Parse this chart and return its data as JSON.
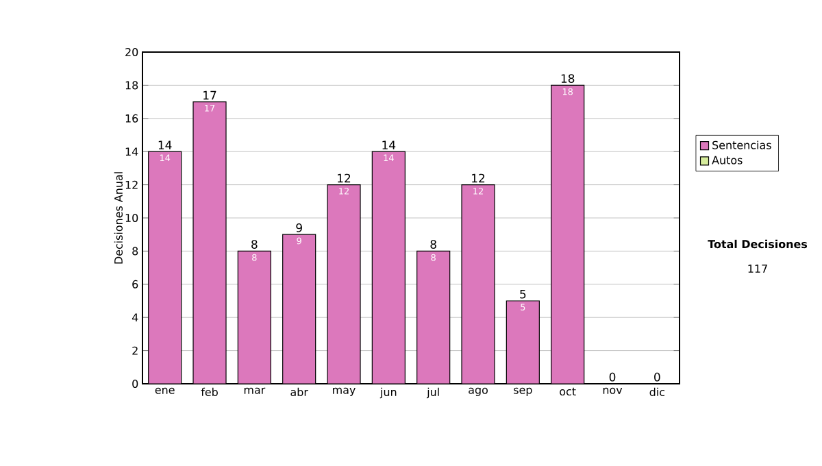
{
  "chart_data": {
    "type": "bar",
    "stacked": true,
    "ylabel": "Decisiones Anual",
    "categories": [
      "ene",
      "feb",
      "mar",
      "abr",
      "may",
      "jun",
      "jul",
      "ago",
      "sep",
      "oct",
      "nov",
      "dic"
    ],
    "series": [
      {
        "name": "Sentencias",
        "color": "#dc78bc",
        "values": [
          14,
          17,
          8,
          9,
          12,
          14,
          8,
          12,
          5,
          18,
          0,
          0
        ],
        "value_labels": [
          "14",
          "17",
          "8",
          "9",
          "12",
          "14",
          "8",
          "12",
          "5",
          "18",
          null,
          null
        ]
      },
      {
        "name": "Autos",
        "color": "#d6ec9c",
        "values": [
          0,
          0,
          0,
          0,
          0,
          0,
          0,
          0,
          0,
          0,
          0,
          0
        ]
      }
    ],
    "totals": [
      "14",
      "17",
      "8",
      "9",
      "12",
      "14",
      "8",
      "12",
      "5",
      "18",
      "0",
      "0"
    ],
    "ylim": [
      0,
      20
    ],
    "yticks": [
      0,
      2,
      4,
      6,
      8,
      10,
      12,
      14,
      16,
      18,
      20
    ],
    "grid": "y",
    "legend": "right",
    "annotations": [
      "**Total Decisiones**",
      "117"
    ]
  }
}
